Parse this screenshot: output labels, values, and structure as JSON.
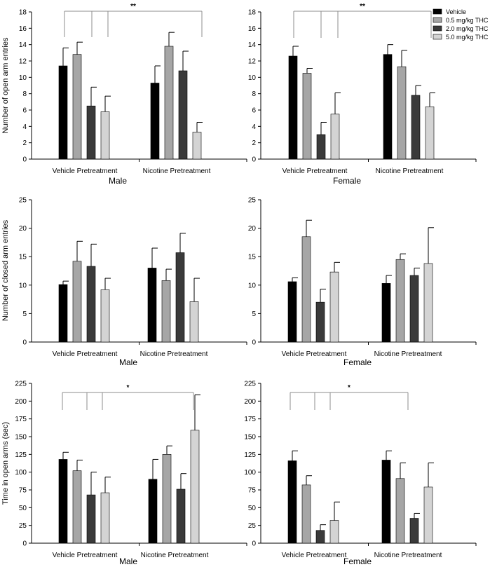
{
  "series_names": [
    "Vehicle",
    "0.5 mg/kg THC",
    "2.0 mg/kg THC",
    "5.0 mg/kg THC"
  ],
  "series_colors": [
    "#000000",
    "#a6a6a6",
    "#3a3a3a",
    "#d4d4d4"
  ],
  "chart_data": [
    {
      "type": "bar",
      "panel": "male-open-entries",
      "xlabel": "Male",
      "ylabel": "Number of open arm entries",
      "categories": [
        "Vehicle Pretreatment",
        "Nicotine Pretreatment"
      ],
      "ylim": [
        0,
        18
      ],
      "yticks": [
        0,
        2,
        4,
        6,
        8,
        10,
        12,
        14,
        16,
        18
      ],
      "grid": false,
      "series": [
        {
          "name": "Vehicle",
          "values": [
            11.4,
            9.3
          ],
          "errors": [
            2.2,
            2.1
          ]
        },
        {
          "name": "0.5 mg/kg THC",
          "values": [
            12.8,
            13.8
          ],
          "errors": [
            1.5,
            1.7
          ]
        },
        {
          "name": "2.0 mg/kg THC",
          "values": [
            6.5,
            10.8
          ],
          "errors": [
            2.3,
            2.4
          ]
        },
        {
          "name": "5.0 mg/kg THC",
          "values": [
            5.8,
            3.3
          ],
          "errors": [
            1.9,
            1.2
          ]
        }
      ],
      "annotation": "**"
    },
    {
      "type": "bar",
      "panel": "female-open-entries",
      "xlabel": "Female",
      "ylabel": "",
      "categories": [
        "Vehicle Pretreatment",
        "Nicotine Pretreatment"
      ],
      "ylim": [
        0,
        18
      ],
      "yticks": [
        0,
        2,
        4,
        6,
        8,
        10,
        12,
        14,
        16,
        18
      ],
      "grid": false,
      "legend": "top-right",
      "series": [
        {
          "name": "Vehicle",
          "values": [
            12.6,
            12.8
          ],
          "errors": [
            1.2,
            1.2
          ]
        },
        {
          "name": "0.5 mg/kg THC",
          "values": [
            10.5,
            11.3
          ],
          "errors": [
            0.6,
            2.0
          ]
        },
        {
          "name": "2.0 mg/kg THC",
          "values": [
            3.0,
            7.8
          ],
          "errors": [
            1.5,
            1.2
          ]
        },
        {
          "name": "5.0 mg/kg THC",
          "values": [
            5.5,
            6.4
          ],
          "errors": [
            2.6,
            1.7
          ]
        }
      ],
      "annotation": "**"
    },
    {
      "type": "bar",
      "panel": "male-closed-entries",
      "xlabel": "Male",
      "ylabel": "Number of closed arm entries",
      "categories": [
        "Vehicle Pretreatment",
        "Nicotine Pretreatment"
      ],
      "ylim": [
        0,
        25
      ],
      "yticks": [
        0,
        5,
        10,
        15,
        20,
        25
      ],
      "grid": false,
      "series": [
        {
          "name": "Vehicle",
          "values": [
            10.1,
            13.0
          ],
          "errors": [
            0.6,
            3.5
          ]
        },
        {
          "name": "0.5 mg/kg THC",
          "values": [
            14.2,
            10.8
          ],
          "errors": [
            3.5,
            2.0
          ]
        },
        {
          "name": "2.0 mg/kg THC",
          "values": [
            13.3,
            15.7
          ],
          "errors": [
            3.9,
            3.4
          ]
        },
        {
          "name": "5.0 mg/kg THC",
          "values": [
            9.2,
            7.1
          ],
          "errors": [
            2.0,
            4.1
          ]
        }
      ],
      "annotation": ""
    },
    {
      "type": "bar",
      "panel": "female-closed-entries",
      "xlabel": "Female",
      "ylabel": "",
      "categories": [
        "Vehicle Pretreatment",
        "Nicotine Pretreatment"
      ],
      "ylim": [
        0,
        25
      ],
      "yticks": [
        0,
        5,
        10,
        15,
        20,
        25
      ],
      "grid": false,
      "series": [
        {
          "name": "Vehicle",
          "values": [
            10.6,
            10.3
          ],
          "errors": [
            0.7,
            1.4
          ]
        },
        {
          "name": "0.5 mg/kg THC",
          "values": [
            18.5,
            14.5
          ],
          "errors": [
            2.9,
            1.0
          ]
        },
        {
          "name": "2.0 mg/kg THC",
          "values": [
            7.0,
            11.7
          ],
          "errors": [
            2.3,
            1.3
          ]
        },
        {
          "name": "5.0 mg/kg THC",
          "values": [
            12.3,
            13.8
          ],
          "errors": [
            1.7,
            6.3
          ]
        }
      ],
      "annotation": ""
    },
    {
      "type": "bar",
      "panel": "male-open-time",
      "xlabel": "Male",
      "ylabel": "Time in open arms (sec)",
      "categories": [
        "Vehicle Pretreatment",
        "Nicotine Pretreatment"
      ],
      "ylim": [
        0,
        225
      ],
      "yticks": [
        0,
        25,
        50,
        75,
        100,
        125,
        150,
        175,
        200,
        225
      ],
      "grid": false,
      "series": [
        {
          "name": "Vehicle",
          "values": [
            118,
            90
          ],
          "errors": [
            10,
            28
          ]
        },
        {
          "name": "0.5 mg/kg THC",
          "values": [
            102,
            125
          ],
          "errors": [
            15,
            12
          ]
        },
        {
          "name": "2.0 mg/kg THC",
          "values": [
            68,
            76
          ],
          "errors": [
            32,
            22
          ]
        },
        {
          "name": "5.0 mg/kg THC",
          "values": [
            71,
            159
          ],
          "errors": [
            22,
            50
          ]
        }
      ],
      "annotation": "*"
    },
    {
      "type": "bar",
      "panel": "female-open-time",
      "xlabel": "Female",
      "ylabel": "",
      "categories": [
        "Vehicle Pretreatment",
        "Nicotine Pretreatment"
      ],
      "ylim": [
        0,
        225
      ],
      "yticks": [
        0,
        25,
        50,
        75,
        100,
        125,
        150,
        175,
        200,
        225
      ],
      "grid": false,
      "series": [
        {
          "name": "Vehicle",
          "values": [
            116,
            117
          ],
          "errors": [
            14,
            13
          ]
        },
        {
          "name": "0.5 mg/kg THC",
          "values": [
            82,
            91
          ],
          "errors": [
            13,
            22
          ]
        },
        {
          "name": "2.0 mg/kg THC",
          "values": [
            18,
            35
          ],
          "errors": [
            8,
            7
          ]
        },
        {
          "name": "5.0 mg/kg THC",
          "values": [
            32,
            79
          ],
          "errors": [
            26,
            34
          ]
        }
      ],
      "annotation": "*"
    }
  ]
}
